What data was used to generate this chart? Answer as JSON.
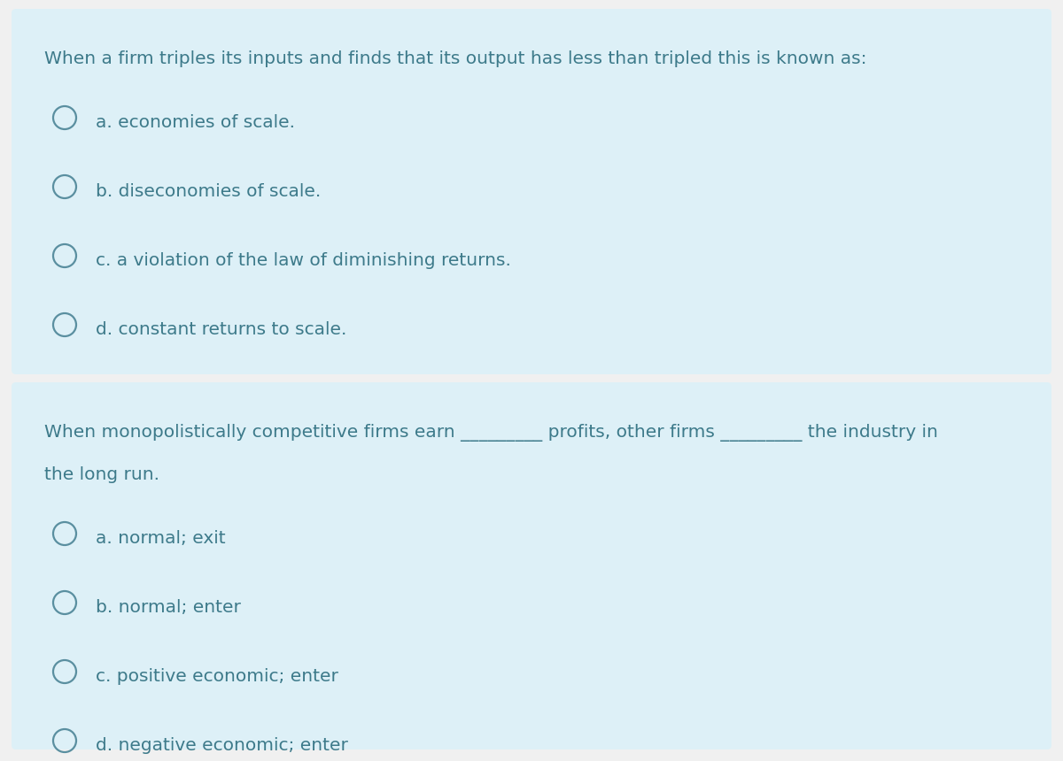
{
  "bg_color": "#f0f0f0",
  "box_color": "#ddf0f7",
  "text_color": "#3d7a8a",
  "circle_color": "#5a8fa0",
  "q1_question": "When a firm triples its inputs and finds that its output has less than tripled this is known as:",
  "q1_options": [
    "a. economies of scale.",
    "b. diseconomies of scale.",
    "c. a violation of the law of diminishing returns.",
    "d. constant returns to scale."
  ],
  "q2_question_part1": "When monopolistically competitive firms earn _________ profits, other firms _________ the industry in",
  "q2_question_part2": "the long run.",
  "q2_options": [
    "a. normal; exit",
    "b. normal; enter",
    "c. positive economic; enter",
    "d. negative economic; enter"
  ],
  "font_size_question": 14.5,
  "font_size_option": 14.5,
  "font_family": "DejaVu Sans",
  "fig_width": 12.0,
  "fig_height": 8.6,
  "dpi": 100
}
